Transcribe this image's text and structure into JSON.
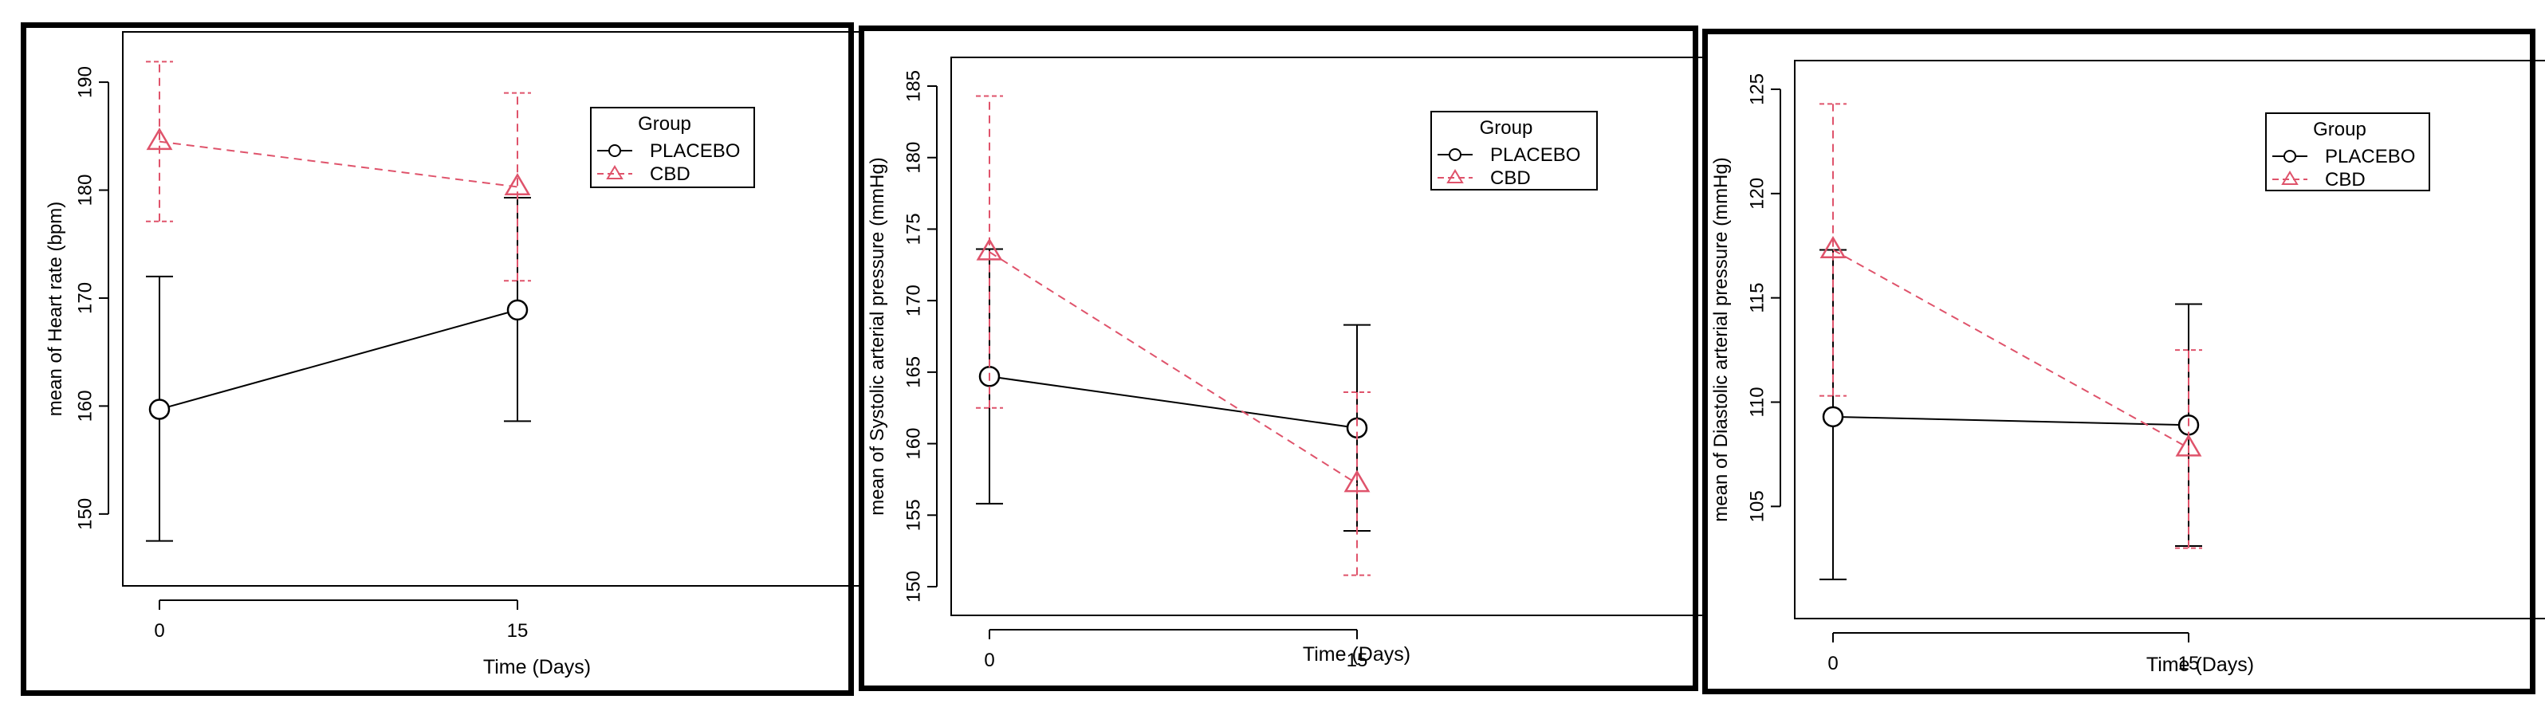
{
  "colors": {
    "placebo": "#000000",
    "cbd": "#DF536B",
    "frame": "#000000"
  },
  "chart_data": [
    {
      "type": "line",
      "xlabel": "Time (Days)",
      "ylabel": "mean of Heart rate (bpm)",
      "x": [
        0,
        15
      ],
      "x_tick_labels": [
        "0",
        "15"
      ],
      "ylim": [
        146,
        192
      ],
      "y_ticks": [
        150,
        160,
        170,
        180,
        190
      ],
      "legend": {
        "title": "Group",
        "position": "top-right"
      },
      "series": [
        {
          "name": "PLACEBO",
          "values": [
            159.7,
            168.9
          ],
          "err_low": [
            147.5,
            158.6
          ],
          "err_high": [
            172.0,
            179.3
          ],
          "marker": "circle",
          "line": "solid"
        },
        {
          "name": "CBD",
          "values": [
            184.5,
            180.3
          ],
          "err_low": [
            177.1,
            171.6
          ],
          "err_high": [
            191.9,
            189.0
          ],
          "marker": "triangle",
          "line": "dashed"
        }
      ]
    },
    {
      "type": "line",
      "xlabel": "Time (Days)",
      "ylabel": "mean of Systolic arterial pressure (mmHg)",
      "x": [
        0,
        15
      ],
      "x_tick_labels": [
        "0",
        "15"
      ],
      "ylim": [
        150,
        185
      ],
      "y_ticks": [
        150,
        155,
        160,
        165,
        170,
        175,
        180,
        185
      ],
      "legend": {
        "title": "Group",
        "position": "top-right"
      },
      "series": [
        {
          "name": "PLACEBO",
          "values": [
            164.7,
            161.1
          ],
          "err_low": [
            155.8,
            153.9
          ],
          "err_high": [
            173.6,
            168.3
          ],
          "marker": "circle",
          "line": "solid"
        },
        {
          "name": "CBD",
          "values": [
            173.4,
            157.2
          ],
          "err_low": [
            162.5,
            150.8
          ],
          "err_high": [
            184.3,
            163.6
          ],
          "marker": "triangle",
          "line": "dashed"
        }
      ]
    },
    {
      "type": "line",
      "xlabel": "Time (Days)",
      "ylabel": "mean of Diastolic arterial pressure (mmHg)",
      "x": [
        0,
        15
      ],
      "x_tick_labels": [
        "0",
        "15"
      ],
      "ylim": [
        101,
        125
      ],
      "y_ticks": [
        105,
        110,
        115,
        120,
        125
      ],
      "legend": {
        "title": "Group",
        "position": "top-right"
      },
      "series": [
        {
          "name": "PLACEBO",
          "values": [
            109.3,
            108.9
          ],
          "err_low": [
            101.5,
            103.1
          ],
          "err_high": [
            117.3,
            114.7
          ],
          "marker": "circle",
          "line": "solid"
        },
        {
          "name": "CBD",
          "values": [
            117.3,
            107.8
          ],
          "err_low": [
            110.3,
            103.0
          ],
          "err_high": [
            124.3,
            112.5
          ],
          "marker": "triangle",
          "line": "dashed"
        }
      ]
    }
  ]
}
